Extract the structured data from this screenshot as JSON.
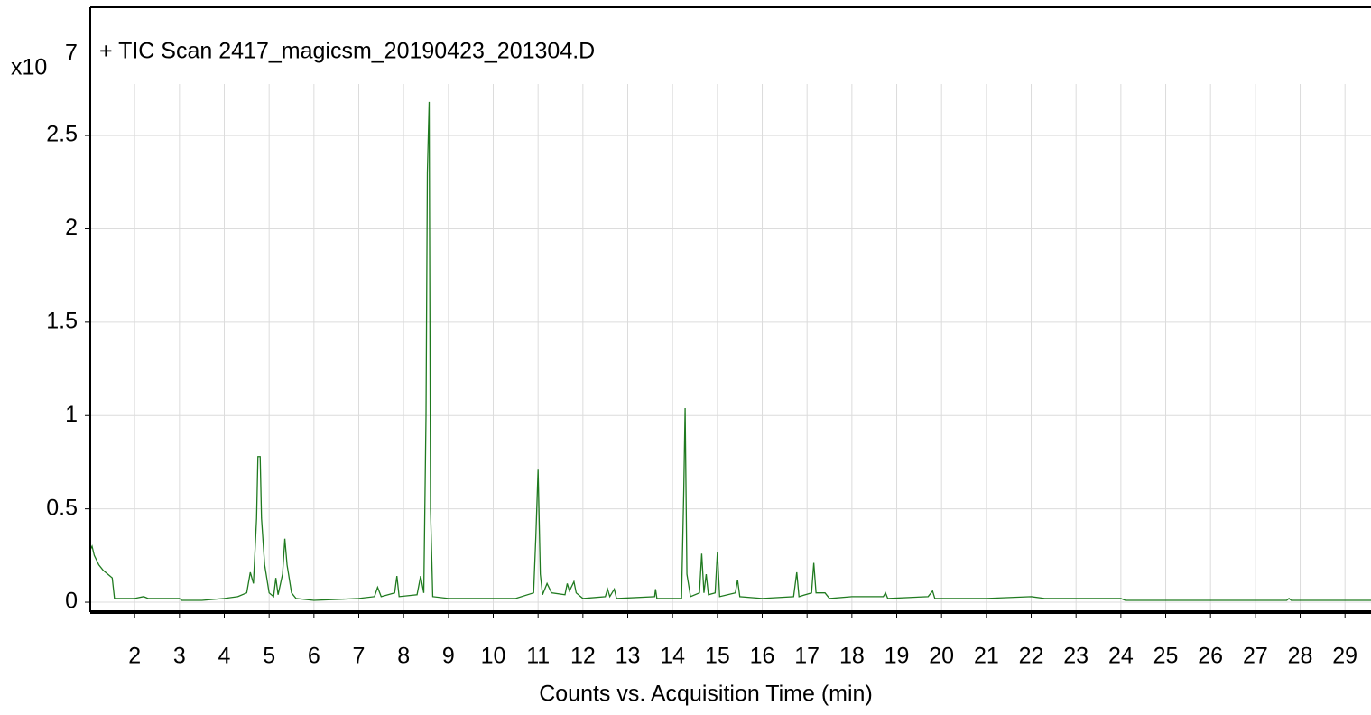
{
  "chart_data": {
    "type": "line",
    "title": "+ TIC Scan 2417_magicsm_20190423_201304.D",
    "y_multiplier": "x10",
    "y_multiplier_exponent": "7",
    "x_label": "Counts vs. Acquisition Time (min)",
    "xlim": [
      1.01,
      29.58
    ],
    "ylim": [
      -0.053,
      3.187
    ],
    "xticks": [
      2,
      3,
      4,
      5,
      6,
      7,
      8,
      9,
      10,
      11,
      12,
      13,
      14,
      15,
      16,
      17,
      18,
      19,
      20,
      21,
      22,
      23,
      24,
      25,
      26,
      27,
      28,
      29
    ],
    "yticks": [
      0,
      0.5,
      1,
      1.5,
      2,
      2.5
    ],
    "grid": true,
    "series": [
      {
        "color": "#1f7a1f",
        "x": [
          1.01,
          1.05,
          1.1,
          1.2,
          1.3,
          1.4,
          1.5,
          1.55,
          2.0,
          2.2,
          2.3,
          3.0,
          3.05,
          3.5,
          4.0,
          4.3,
          4.5,
          4.58,
          4.65,
          4.72,
          4.75,
          4.8,
          4.83,
          4.9,
          5.0,
          5.1,
          5.15,
          5.2,
          5.3,
          5.35,
          5.4,
          5.5,
          5.6,
          6.0,
          7.0,
          7.35,
          7.42,
          7.5,
          7.8,
          7.85,
          7.9,
          8.3,
          8.38,
          8.45,
          8.5,
          8.53,
          8.57,
          8.6,
          8.65,
          9.0,
          10.0,
          10.5,
          10.9,
          10.95,
          11.0,
          11.05,
          11.1,
          11.2,
          11.3,
          11.6,
          11.65,
          11.7,
          11.8,
          11.85,
          12.0,
          12.5,
          12.55,
          12.6,
          12.7,
          12.75,
          13.6,
          13.62,
          13.65,
          14.2,
          14.25,
          14.28,
          14.32,
          14.4,
          14.6,
          14.65,
          14.7,
          14.75,
          14.8,
          14.95,
          15.0,
          15.05,
          15.4,
          15.45,
          15.5,
          16.0,
          16.7,
          16.77,
          16.82,
          17.1,
          17.15,
          17.2,
          17.4,
          17.5,
          18.0,
          18.7,
          18.75,
          18.8,
          19.7,
          19.8,
          19.85,
          21.0,
          22.0,
          22.3,
          24.0,
          24.1,
          26.5,
          27.7,
          27.75,
          27.8,
          29.3,
          29.58
        ],
        "values": [
          0.28,
          0.3,
          0.25,
          0.2,
          0.17,
          0.15,
          0.13,
          0.02,
          0.02,
          0.03,
          0.02,
          0.02,
          0.01,
          0.01,
          0.02,
          0.03,
          0.05,
          0.16,
          0.1,
          0.45,
          0.78,
          0.78,
          0.45,
          0.2,
          0.05,
          0.03,
          0.13,
          0.04,
          0.15,
          0.34,
          0.2,
          0.05,
          0.02,
          0.01,
          0.02,
          0.03,
          0.08,
          0.03,
          0.05,
          0.14,
          0.03,
          0.04,
          0.14,
          0.05,
          1.0,
          2.3,
          2.68,
          0.5,
          0.03,
          0.02,
          0.02,
          0.02,
          0.05,
          0.35,
          0.71,
          0.15,
          0.04,
          0.1,
          0.05,
          0.04,
          0.1,
          0.06,
          0.11,
          0.05,
          0.02,
          0.03,
          0.07,
          0.03,
          0.07,
          0.02,
          0.03,
          0.07,
          0.02,
          0.02,
          0.6,
          1.04,
          0.15,
          0.03,
          0.05,
          0.26,
          0.05,
          0.15,
          0.04,
          0.05,
          0.27,
          0.03,
          0.05,
          0.12,
          0.03,
          0.02,
          0.03,
          0.16,
          0.03,
          0.05,
          0.21,
          0.05,
          0.05,
          0.02,
          0.03,
          0.03,
          0.05,
          0.02,
          0.03,
          0.06,
          0.02,
          0.02,
          0.03,
          0.02,
          0.02,
          0.01,
          0.01,
          0.01,
          0.02,
          0.01,
          0.01,
          0.01
        ]
      }
    ]
  }
}
